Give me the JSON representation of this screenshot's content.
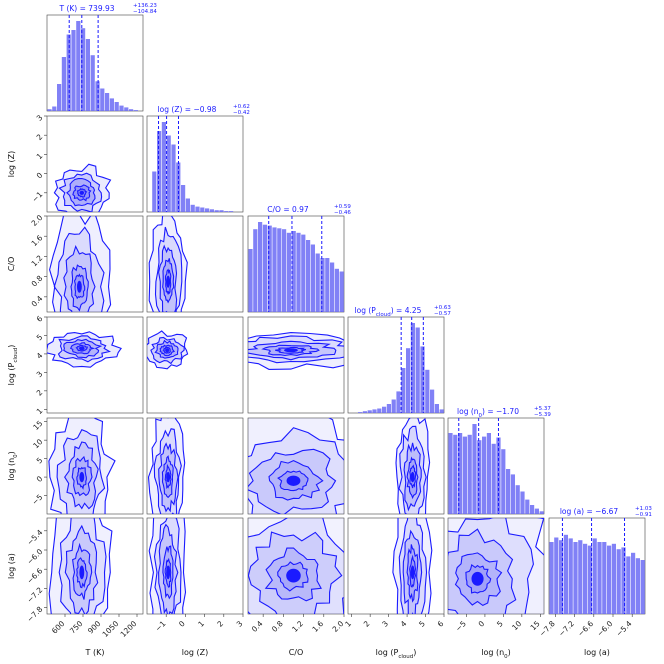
{
  "chart_data": {
    "type": "corner",
    "color": "#1a1aff",
    "fill": "#6b6bf5",
    "parameters": [
      {
        "key": "T",
        "label": "T (K)",
        "title": "T (K) = 739.93",
        "err_up": "+136.23",
        "err_dn": "−104.84",
        "range": [
          450,
          1250
        ],
        "ticks": [
          600,
          750,
          900,
          1050,
          1200
        ],
        "tick_labels": [
          "600",
          "750",
          "900",
          "1050",
          "1200"
        ],
        "quantiles": [
          635,
          740,
          876
        ],
        "hist": [
          0.02,
          0.05,
          0.3,
          0.6,
          0.85,
          0.9,
          1.0,
          0.92,
          0.8,
          0.62,
          0.33,
          0.25,
          0.2,
          0.14,
          0.1,
          0.06,
          0.04,
          0.02,
          0.01,
          0.0
        ]
      },
      {
        "key": "Z",
        "label": "log (Z)",
        "title": "log (Z) = −0.98",
        "err_up": "+0.62",
        "err_dn": "−0.42",
        "range": [
          -2,
          3
        ],
        "ticks": [
          -1,
          0,
          1,
          2,
          3
        ],
        "tick_labels": [
          "−1",
          "0",
          "1",
          "2",
          "3"
        ],
        "quantiles": [
          -1.4,
          -0.98,
          -0.36
        ],
        "hist": [
          0.0,
          0.45,
          0.9,
          1.0,
          0.85,
          0.75,
          0.55,
          0.3,
          0.15,
          0.08,
          0.06,
          0.05,
          0.04,
          0.03,
          0.02,
          0.02,
          0.01,
          0.01,
          0.0,
          0.0
        ]
      },
      {
        "key": "CO",
        "label": "C/O",
        "title": "C/O = 0.97",
        "err_up": "+0.59",
        "err_dn": "−0.46",
        "range": [
          0.1,
          2.0
        ],
        "ticks": [
          0.4,
          0.8,
          1.2,
          1.6,
          2.0
        ],
        "tick_labels": [
          "0.4",
          "0.8",
          "1.2",
          "1.6",
          "2.0"
        ],
        "quantiles": [
          0.51,
          0.97,
          1.56
        ],
        "hist": [
          0.7,
          0.92,
          1.0,
          0.97,
          0.96,
          0.94,
          0.93,
          0.92,
          0.88,
          0.9,
          0.88,
          0.86,
          0.8,
          0.75,
          0.65,
          0.6,
          0.6,
          0.55,
          0.48,
          0.45
        ]
      },
      {
        "key": "P",
        "label": "log (P_cloud)",
        "title": "log (P_cloud) = 4.25",
        "err_up": "+0.63",
        "err_dn": "−0.57",
        "range": [
          0.8,
          6.0
        ],
        "ticks": [
          1,
          2,
          3,
          4,
          5,
          6
        ],
        "tick_labels": [
          "1",
          "2",
          "3",
          "4",
          "5",
          "6"
        ],
        "quantiles": [
          3.68,
          4.25,
          4.88
        ],
        "hist": [
          0.0,
          0.0,
          0.01,
          0.02,
          0.03,
          0.04,
          0.05,
          0.07,
          0.1,
          0.15,
          0.24,
          0.5,
          0.72,
          1.0,
          0.95,
          0.74,
          0.48,
          0.26,
          0.1,
          0.04
        ]
      },
      {
        "key": "n0",
        "label": "log (n_0)",
        "title": "log (n_0) = −1.70",
        "err_up": "+5.37",
        "err_dn": "−5.39",
        "range": [
          -10,
          16
        ],
        "ticks": [
          -5,
          0,
          5,
          10,
          15
        ],
        "tick_labels": [
          "−5",
          "0",
          "5",
          "10",
          "15"
        ],
        "quantiles": [
          -7.09,
          -1.7,
          3.67
        ],
        "hist": [
          0.9,
          0.88,
          0.9,
          0.86,
          0.88,
          1.0,
          0.82,
          0.86,
          0.9,
          0.78,
          0.85,
          0.72,
          0.5,
          0.44,
          0.32,
          0.25,
          0.16,
          0.1,
          0.06,
          0.03
        ]
      },
      {
        "key": "a",
        "label": "log (a)",
        "title": "log (a) = −6.67",
        "err_up": "+1.03",
        "err_dn": "−0.91",
        "range": [
          -8.0,
          -5.0
        ],
        "ticks": [
          -7.8,
          -7.2,
          -6.6,
          -6.0,
          -5.4
        ],
        "tick_labels": [
          "−7.8",
          "−7.2",
          "−6.6",
          "−6.0",
          "−5.4"
        ],
        "quantiles": [
          -7.58,
          -6.67,
          -5.64
        ],
        "hist": [
          0.8,
          0.85,
          0.82,
          0.88,
          0.84,
          0.8,
          0.82,
          0.78,
          0.76,
          0.84,
          0.8,
          0.8,
          0.76,
          0.78,
          0.72,
          0.74,
          0.64,
          0.68,
          0.62,
          0.6
        ]
      }
    ],
    "blobs": {
      "1-0": {
        "center": [
          740,
          -1.0
        ],
        "spread": [
          0.13,
          0.12
        ],
        "fill": 0.8
      },
      "2-0": {
        "center": [
          720,
          0.6
        ],
        "spread": [
          0.14,
          0.35
        ],
        "fill": 0.45
      },
      "2-1": {
        "center": [
          -0.9,
          0.7
        ],
        "spread": [
          0.08,
          0.35
        ],
        "fill": 0.5
      },
      "3-0": {
        "center": [
          740,
          4.3
        ],
        "spread": [
          0.16,
          0.08
        ],
        "fill": 0.7
      },
      "3-1": {
        "center": [
          -0.95,
          4.2
        ],
        "spread": [
          0.1,
          0.08
        ],
        "fill": 0.75
      },
      "3-2": {
        "center": [
          0.95,
          4.2
        ],
        "spread": [
          0.4,
          0.08
        ],
        "fill": 0.45
      },
      "4-0": {
        "center": [
          740,
          0.0
        ],
        "spread": [
          0.14,
          0.3
        ],
        "fill": 0.45
      },
      "4-1": {
        "center": [
          -0.9,
          0.0
        ],
        "spread": [
          0.08,
          0.3
        ],
        "fill": 0.5
      },
      "4-2": {
        "center": [
          1.0,
          -1.0
        ],
        "spread": [
          0.4,
          0.3
        ],
        "fill": 0.4
      },
      "4-3": {
        "center": [
          4.3,
          0.0
        ],
        "spread": [
          0.08,
          0.3
        ],
        "fill": 0.55
      },
      "5-0": {
        "center": [
          740,
          -6.7
        ],
        "spread": [
          0.14,
          0.4
        ],
        "fill": 0.4
      },
      "5-1": {
        "center": [
          -0.9,
          -6.7
        ],
        "spread": [
          0.08,
          0.4
        ],
        "fill": 0.45
      },
      "5-2": {
        "center": [
          1.0,
          -6.8
        ],
        "spread": [
          0.42,
          0.4
        ],
        "fill": 0.35
      },
      "5-3": {
        "center": [
          4.3,
          -6.7
        ],
        "spread": [
          0.08,
          0.4
        ],
        "fill": 0.5
      },
      "5-4": {
        "center": [
          -2.0,
          -6.9
        ],
        "spread": [
          0.35,
          0.4
        ],
        "fill": 0.4
      }
    }
  }
}
